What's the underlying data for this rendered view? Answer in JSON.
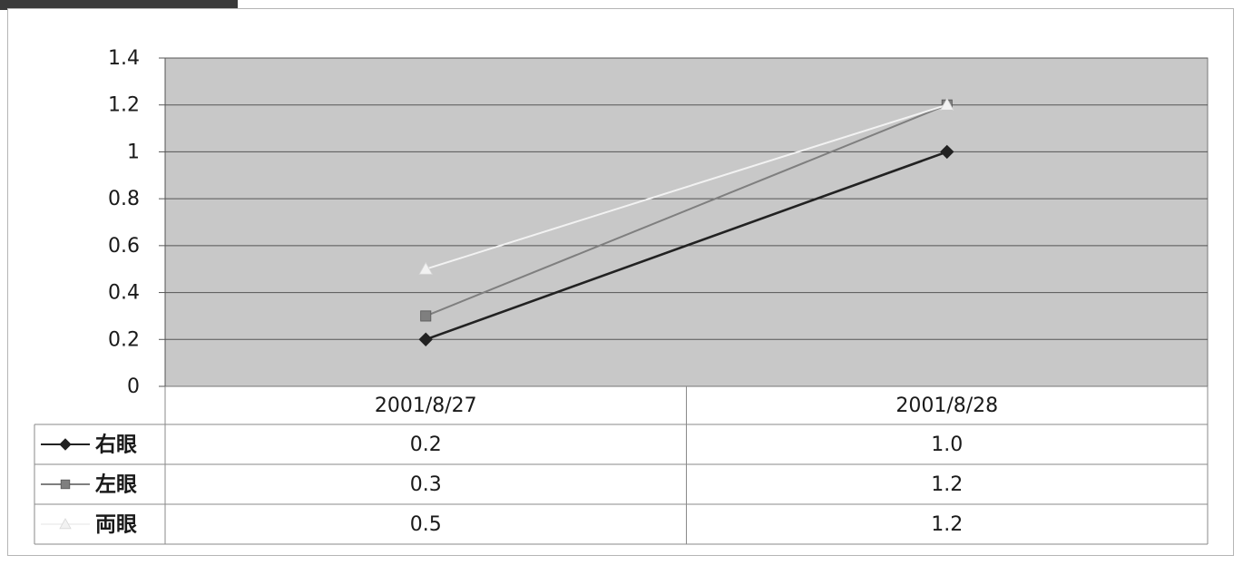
{
  "chart_data": {
    "type": "line",
    "x": [
      "2001/8/27",
      "2001/8/28"
    ],
    "ylim": [
      0,
      1.4
    ],
    "yticks": [
      "0",
      "0.2",
      "0.4",
      "0.6",
      "0.8",
      "1",
      "1.2",
      "1.4"
    ],
    "grid": true,
    "legend": "data-table",
    "series": [
      {
        "name": "右眼",
        "values": [
          0.2,
          1.0
        ],
        "labels": [
          "0.2",
          "1.0"
        ],
        "color": "#222222",
        "marker": "diamond"
      },
      {
        "name": "左眼",
        "values": [
          0.3,
          1.2
        ],
        "labels": [
          "0.3",
          "1.2"
        ],
        "color": "#7f7f7f",
        "marker": "square"
      },
      {
        "name": "両眼",
        "values": [
          0.5,
          1.2
        ],
        "labels": [
          "0.5",
          "1.2"
        ],
        "color": "#f2f2f2",
        "marker": "triangle"
      }
    ]
  },
  "colors": {
    "plot_bg": "#c8c8c8",
    "grid": "#555555",
    "table_border": "#8a8a8a"
  }
}
